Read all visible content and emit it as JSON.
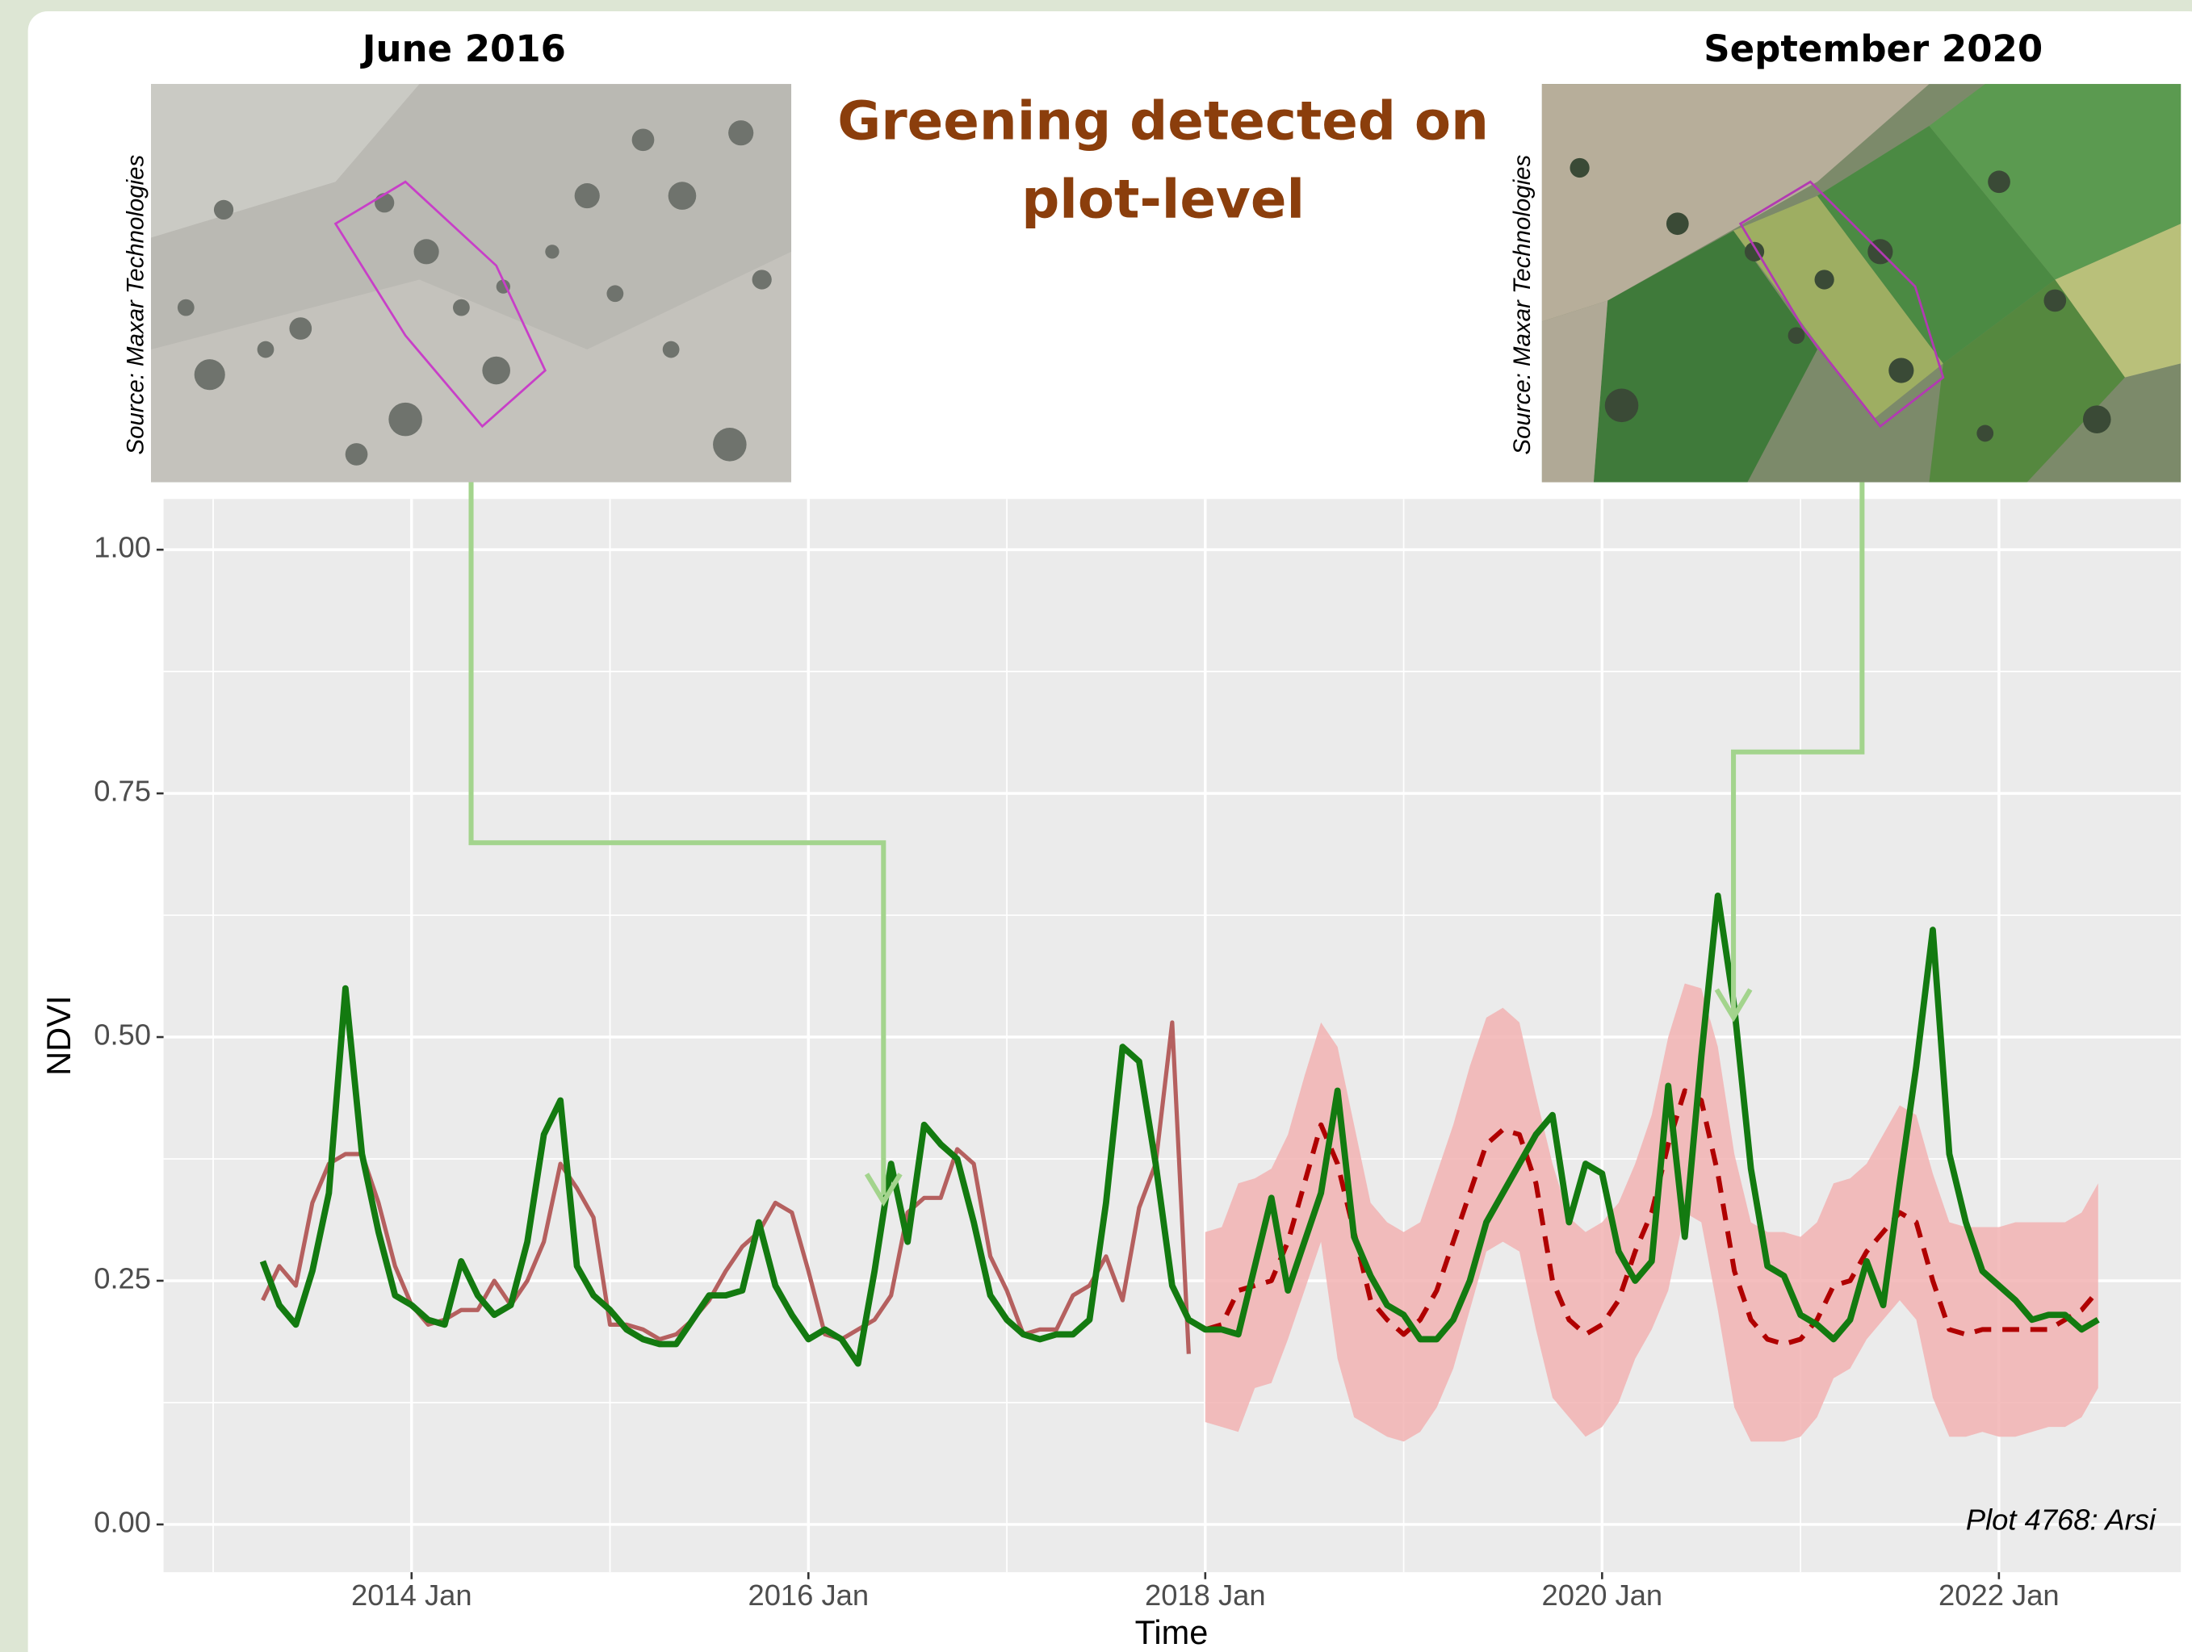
{
  "chart_data": {
    "type": "line",
    "title": [
      "Greening detected on",
      "plot-level"
    ],
    "image_captions": [
      "June 2016",
      "September 2020"
    ],
    "image_credits": [
      "Source: Maxar Technologies",
      "Source: Maxar Technologies"
    ],
    "annotation": "Plot 4768: Arsi",
    "x_label": "Time",
    "y_label": "NDVI",
    "xlim": [
      "2012-10",
      "2022-12"
    ],
    "xticks": [
      {
        "value": "2014-01",
        "label": "2014 Jan"
      },
      {
        "value": "2016-01",
        "label": "2016 Jan"
      },
      {
        "value": "2018-01",
        "label": "2018 Jan"
      },
      {
        "value": "2020-01",
        "label": "2020 Jan"
      },
      {
        "value": "2022-01",
        "label": "2022 Jan"
      }
    ],
    "x_minor_grid": [
      "2013-01",
      "2015-01",
      "2017-01",
      "2019-01",
      "2021-01"
    ],
    "ylim": [
      -0.049,
      1.052
    ],
    "yticks": [
      {
        "value": 0,
        "label": "0.00"
      },
      {
        "value": 0.25,
        "label": "0.25"
      },
      {
        "value": 0.5,
        "label": "0.50"
      },
      {
        "value": 0.75,
        "label": "0.75"
      },
      {
        "value": 1,
        "label": "1.00"
      }
    ],
    "y_minor_grid": [
      0.125,
      0.375,
      0.625,
      0.875
    ],
    "grid": true,
    "x": [
      "2013-04",
      "2013-05",
      "2013-06",
      "2013-07",
      "2013-08",
      "2013-09",
      "2013-10",
      "2013-11",
      "2013-12",
      "2014-01",
      "2014-02",
      "2014-03",
      "2014-04",
      "2014-05",
      "2014-06",
      "2014-07",
      "2014-08",
      "2014-09",
      "2014-10",
      "2014-11",
      "2014-12",
      "2015-01",
      "2015-02",
      "2015-03",
      "2015-04",
      "2015-05",
      "2015-06",
      "2015-07",
      "2015-08",
      "2015-09",
      "2015-10",
      "2015-11",
      "2015-12",
      "2016-01",
      "2016-02",
      "2016-03",
      "2016-04",
      "2016-05",
      "2016-06",
      "2016-07",
      "2016-08",
      "2016-09",
      "2016-10",
      "2016-11",
      "2016-12",
      "2017-01",
      "2017-02",
      "2017-03",
      "2017-04",
      "2017-05",
      "2017-06",
      "2017-07",
      "2017-08",
      "2017-09",
      "2017-10",
      "2017-11",
      "2017-12",
      "2018-01",
      "2018-02",
      "2018-03",
      "2018-04",
      "2018-05",
      "2018-06",
      "2018-07",
      "2018-08",
      "2018-09",
      "2018-10",
      "2018-11",
      "2018-12",
      "2019-01",
      "2019-02",
      "2019-03",
      "2019-04",
      "2019-05",
      "2019-06",
      "2019-07",
      "2019-08",
      "2019-09",
      "2019-10",
      "2019-11",
      "2019-12",
      "2020-01",
      "2020-02",
      "2020-03",
      "2020-04",
      "2020-05",
      "2020-06",
      "2020-07",
      "2020-08",
      "2020-09",
      "2020-10",
      "2020-11",
      "2020-12",
      "2021-01",
      "2021-02",
      "2021-03",
      "2021-04",
      "2021-05",
      "2021-06",
      "2021-07",
      "2021-08",
      "2021-09",
      "2021-10",
      "2021-11",
      "2021-12",
      "2022-01",
      "2022-02",
      "2022-03",
      "2022-04",
      "2022-05",
      "2022-06",
      "2022-07"
    ],
    "band": {
      "color": "#f2b3b3",
      "lower": [
        null,
        null,
        null,
        null,
        null,
        null,
        null,
        null,
        null,
        null,
        null,
        null,
        null,
        null,
        null,
        null,
        null,
        null,
        null,
        null,
        null,
        null,
        null,
        null,
        null,
        null,
        null,
        null,
        null,
        null,
        null,
        null,
        null,
        null,
        null,
        null,
        null,
        null,
        null,
        null,
        null,
        null,
        null,
        null,
        null,
        null,
        null,
        null,
        null,
        null,
        null,
        null,
        null,
        null,
        null,
        null,
        null,
        0.105,
        0.1,
        0.095,
        0.14,
        0.145,
        0.19,
        0.24,
        0.29,
        0.17,
        0.11,
        0.1,
        0.09,
        0.085,
        0.095,
        0.12,
        0.16,
        0.22,
        0.28,
        0.29,
        0.28,
        0.2,
        0.13,
        0.11,
        0.09,
        0.1,
        0.125,
        0.17,
        0.2,
        0.24,
        0.32,
        0.31,
        0.22,
        0.12,
        0.085,
        0.085,
        0.085,
        0.09,
        0.11,
        0.15,
        0.16,
        0.19,
        0.21,
        0.23,
        0.21,
        0.13,
        0.09,
        0.09,
        0.095,
        0.09,
        0.09,
        0.095,
        0.1,
        0.1,
        0.11,
        0.14
      ],
      "upper": [
        null,
        null,
        null,
        null,
        null,
        null,
        null,
        null,
        null,
        null,
        null,
        null,
        null,
        null,
        null,
        null,
        null,
        null,
        null,
        null,
        null,
        null,
        null,
        null,
        null,
        null,
        null,
        null,
        null,
        null,
        null,
        null,
        null,
        null,
        null,
        null,
        null,
        null,
        null,
        null,
        null,
        null,
        null,
        null,
        null,
        null,
        null,
        null,
        null,
        null,
        null,
        null,
        null,
        null,
        null,
        null,
        null,
        0.3,
        0.305,
        0.35,
        0.355,
        0.365,
        0.4,
        0.46,
        0.515,
        0.49,
        0.41,
        0.33,
        0.31,
        0.3,
        0.31,
        0.36,
        0.41,
        0.47,
        0.52,
        0.53,
        0.515,
        0.44,
        0.37,
        0.315,
        0.3,
        0.31,
        0.33,
        0.37,
        0.42,
        0.5,
        0.555,
        0.55,
        0.49,
        0.38,
        0.31,
        0.3,
        0.3,
        0.295,
        0.31,
        0.35,
        0.355,
        0.37,
        0.4,
        0.43,
        0.42,
        0.36,
        0.31,
        0.305,
        0.305,
        0.305,
        0.31,
        0.31,
        0.31,
        0.31,
        0.32,
        0.35
      ]
    },
    "series": [
      {
        "color": "#b5605f",
        "width": 3,
        "dashed": false,
        "values": [
          0.23,
          0.265,
          0.245,
          0.33,
          0.37,
          0.38,
          0.38,
          0.33,
          0.265,
          0.225,
          0.205,
          0.21,
          0.22,
          0.22,
          0.25,
          0.225,
          0.25,
          0.29,
          0.37,
          0.345,
          0.315,
          0.205,
          0.205,
          0.2,
          0.19,
          0.195,
          0.21,
          0.23,
          0.26,
          0.285,
          0.3,
          0.33,
          0.32,
          0.26,
          0.195,
          0.19,
          0.2,
          0.21,
          0.235,
          0.32,
          0.335,
          0.335,
          0.385,
          0.37,
          0.275,
          0.24,
          0.195,
          0.2,
          0.2,
          0.235,
          0.245,
          0.275,
          0.23,
          0.325,
          0.37,
          0.515,
          0.175,
          null,
          null,
          null,
          null,
          null,
          null,
          null,
          null,
          null,
          null,
          null,
          null,
          null,
          null,
          null,
          null,
          null,
          null,
          null,
          null,
          null,
          null,
          null,
          null,
          null,
          null,
          null,
          null,
          null,
          null,
          null,
          null,
          null,
          null,
          null,
          null,
          null,
          null,
          null,
          null,
          null,
          null,
          null,
          null,
          null,
          null,
          null,
          null,
          null,
          null,
          null,
          null,
          null,
          null,
          null
        ]
      },
      {
        "color": "#b00000",
        "width": 3.5,
        "dashed": true,
        "values": [
          null,
          null,
          null,
          null,
          null,
          null,
          null,
          null,
          null,
          null,
          null,
          null,
          null,
          null,
          null,
          null,
          null,
          null,
          null,
          null,
          null,
          null,
          null,
          null,
          null,
          null,
          null,
          null,
          null,
          null,
          null,
          null,
          null,
          null,
          null,
          null,
          null,
          null,
          null,
          null,
          null,
          null,
          null,
          null,
          null,
          null,
          null,
          null,
          null,
          null,
          null,
          null,
          null,
          null,
          null,
          null,
          null,
          0.2,
          0.205,
          0.24,
          0.245,
          0.25,
          0.29,
          0.35,
          0.41,
          0.37,
          0.3,
          0.23,
          0.21,
          0.195,
          0.21,
          0.24,
          0.29,
          0.34,
          0.39,
          0.405,
          0.4,
          0.35,
          0.25,
          0.21,
          0.195,
          0.205,
          0.23,
          0.28,
          0.32,
          0.39,
          0.445,
          0.435,
          0.36,
          0.26,
          0.21,
          0.19,
          0.185,
          0.19,
          0.21,
          0.245,
          0.25,
          0.28,
          0.3,
          0.32,
          0.31,
          0.25,
          0.2,
          0.195,
          0.2,
          0.2,
          0.2,
          0.2,
          0.2,
          0.21,
          0.22,
          0.24
        ]
      },
      {
        "color": "#137a10",
        "width": 4.5,
        "dashed": false,
        "values": [
          0.27,
          0.225,
          0.205,
          0.26,
          0.34,
          0.55,
          0.38,
          0.3,
          0.235,
          0.225,
          0.21,
          0.205,
          0.27,
          0.235,
          0.215,
          0.225,
          0.29,
          0.4,
          0.435,
          0.265,
          0.235,
          0.22,
          0.2,
          0.19,
          0.185,
          0.185,
          0.21,
          0.235,
          0.235,
          0.24,
          0.31,
          0.245,
          0.215,
          0.19,
          0.2,
          0.19,
          0.165,
          0.26,
          0.37,
          0.29,
          0.41,
          0.39,
          0.375,
          0.31,
          0.235,
          0.21,
          0.195,
          0.19,
          0.195,
          0.195,
          0.21,
          0.33,
          0.49,
          0.475,
          0.37,
          0.245,
          0.21,
          0.2,
          0.2,
          0.195,
          0.265,
          0.335,
          0.24,
          0.29,
          0.34,
          0.445,
          0.295,
          0.255,
          0.225,
          0.215,
          0.19,
          0.19,
          0.21,
          0.25,
          0.31,
          0.34,
          0.37,
          0.4,
          0.42,
          0.31,
          0.37,
          0.36,
          0.28,
          0.25,
          0.27,
          0.45,
          0.295,
          0.48,
          0.645,
          0.53,
          0.365,
          0.265,
          0.255,
          0.215,
          0.205,
          0.19,
          0.21,
          0.27,
          0.225,
          0.35,
          0.47,
          0.61,
          0.38,
          0.31,
          0.26,
          0.245,
          0.23,
          0.21,
          0.215,
          0.215,
          0.2,
          0.21
        ]
      }
    ]
  }
}
